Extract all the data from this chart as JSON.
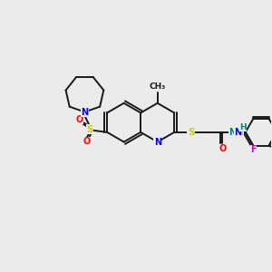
{
  "bg_color": "#ebebeb",
  "bond_color": "#1a1a1a",
  "atom_colors": {
    "N": "#0000ff",
    "S": "#cccc00",
    "O": "#ff0000",
    "F": "#cc00cc",
    "H": "#008080",
    "C": "#1a1a1a"
  },
  "bond_width": 1.4,
  "figsize": [
    3.0,
    3.0
  ],
  "dpi": 100
}
